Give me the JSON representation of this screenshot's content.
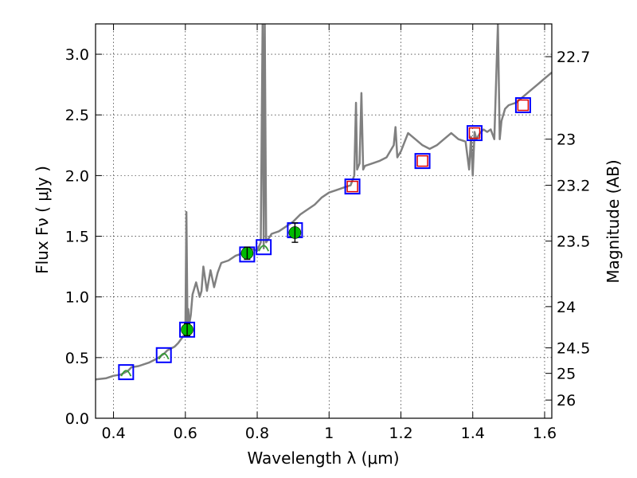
{
  "chart_data": {
    "type": "scatter",
    "xlabel": "Wavelength  λ (μm)",
    "ylabel": "Flux  Fν  ( μJy )",
    "y2label": "Magnitude (AB)",
    "xlim": [
      0.35,
      1.62
    ],
    "ylim": [
      0.0,
      3.25
    ],
    "grid": true,
    "x_ticks": [
      0.4,
      0.6,
      0.8,
      1.0,
      1.2,
      1.4,
      1.6
    ],
    "x_tick_labels": [
      "0.4",
      "0.6",
      "0.8",
      "1",
      "1.2",
      "1.4",
      "1.6"
    ],
    "y_ticks": [
      0.0,
      0.5,
      1.0,
      1.5,
      2.0,
      2.5,
      3.0
    ],
    "y_tick_labels": [
      "0.0",
      "0.5",
      "1.0",
      "1.5",
      "2.0",
      "2.5",
      "3.0"
    ],
    "y2_ticks": [
      {
        "label": "22.7",
        "flux": 2.98
      },
      {
        "label": "23",
        "flux": 2.3
      },
      {
        "label": "23.2",
        "flux": 1.92
      },
      {
        "label": "23.5",
        "flux": 1.46
      },
      {
        "label": "24",
        "flux": 0.92
      },
      {
        "label": "24.5",
        "flux": 0.58
      },
      {
        "label": "25",
        "flux": 0.37
      },
      {
        "label": "26",
        "flux": 0.15
      }
    ],
    "spectrum": {
      "color": "#808080",
      "x": [
        0.35,
        0.38,
        0.4,
        0.42,
        0.44,
        0.45,
        0.47,
        0.5,
        0.52,
        0.54,
        0.55,
        0.57,
        0.58,
        0.59,
        0.6,
        0.603,
        0.606,
        0.608,
        0.611,
        0.615,
        0.62,
        0.63,
        0.64,
        0.645,
        0.65,
        0.66,
        0.67,
        0.68,
        0.69,
        0.7,
        0.72,
        0.74,
        0.76,
        0.78,
        0.8,
        0.81,
        0.815,
        0.818,
        0.821,
        0.825,
        0.84,
        0.86,
        0.88,
        0.9,
        0.92,
        0.94,
        0.96,
        0.98,
        1.0,
        1.02,
        1.04,
        1.06,
        1.07,
        1.075,
        1.078,
        1.085,
        1.09,
        1.095,
        1.1,
        1.12,
        1.14,
        1.16,
        1.18,
        1.185,
        1.19,
        1.2,
        1.22,
        1.24,
        1.26,
        1.28,
        1.3,
        1.32,
        1.34,
        1.36,
        1.38,
        1.39,
        1.395,
        1.4,
        1.405,
        1.41,
        1.42,
        1.43,
        1.44,
        1.45,
        1.46,
        1.47,
        1.475,
        1.48,
        1.49,
        1.5,
        1.52,
        1.54,
        1.56,
        1.58,
        1.6,
        1.62
      ],
      "y": [
        0.32,
        0.33,
        0.35,
        0.36,
        0.39,
        0.42,
        0.43,
        0.46,
        0.49,
        0.53,
        0.56,
        0.59,
        0.62,
        0.66,
        0.7,
        1.7,
        0.75,
        0.9,
        0.78,
        0.85,
        1.02,
        1.12,
        1.0,
        1.05,
        1.25,
        1.05,
        1.22,
        1.08,
        1.2,
        1.28,
        1.3,
        1.34,
        1.36,
        1.4,
        1.38,
        1.45,
        3.25,
        1.4,
        3.25,
        1.45,
        1.52,
        1.54,
        1.58,
        1.62,
        1.68,
        1.72,
        1.76,
        1.82,
        1.86,
        1.88,
        1.9,
        1.92,
        2.0,
        2.6,
        2.05,
        2.1,
        2.68,
        2.05,
        2.08,
        2.1,
        2.12,
        2.15,
        2.25,
        2.4,
        2.15,
        2.2,
        2.35,
        2.3,
        2.25,
        2.22,
        2.25,
        2.3,
        2.35,
        2.3,
        2.28,
        2.05,
        2.32,
        2.0,
        2.36,
        2.3,
        2.35,
        2.38,
        2.36,
        2.38,
        2.3,
        3.25,
        2.3,
        2.45,
        2.55,
        2.58,
        2.6,
        2.65,
        2.7,
        2.75,
        2.8,
        2.85
      ]
    },
    "model_points": {
      "color": "#0000ff",
      "marker": "open-square",
      "x": [
        0.435,
        0.54,
        0.605,
        0.772,
        0.818,
        0.905,
        1.065,
        1.26,
        1.405,
        1.54
      ],
      "y": [
        0.38,
        0.52,
        0.73,
        1.35,
        1.41,
        1.55,
        1.91,
        2.12,
        2.35,
        2.58
      ]
    },
    "observed_points": {
      "color": "#00bb00",
      "marker": "filled-circle",
      "x": [
        0.605,
        0.772,
        0.905
      ],
      "y": [
        0.73,
        1.36,
        1.53
      ],
      "yerr": [
        0.05,
        0.05,
        0.08
      ]
    },
    "upper_limits": {
      "color": "#dd0000",
      "marker": "open-square",
      "x": [
        1.065,
        1.26,
        1.405,
        1.54
      ],
      "y": [
        1.91,
        2.12,
        2.35,
        2.58
      ]
    },
    "filter_curves": {
      "color": "#339933",
      "x": [
        0.435,
        0.54,
        0.818
      ]
    }
  }
}
